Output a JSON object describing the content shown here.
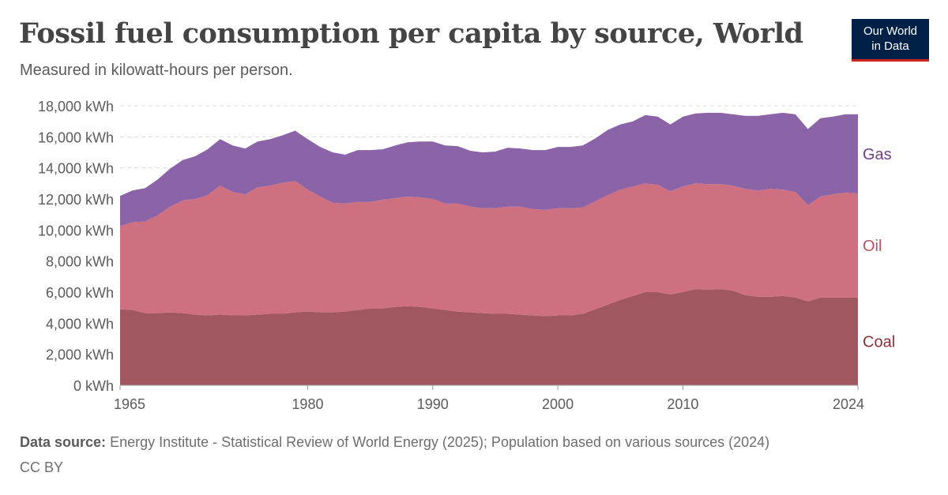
{
  "header": {
    "title": "Fossil fuel consumption per capita by source, World",
    "subtitle": "Measured in kilowatt-hours per person."
  },
  "logo": {
    "line1": "Our World",
    "line2": "in Data"
  },
  "footer": {
    "source_label": "Data source:",
    "source_text": "Energy Institute - Statistical Review of World Energy (2025); Population based on various sources (2024)",
    "license": "CC BY"
  },
  "colors": {
    "coal": "#a0575f",
    "oil": "#cf7080",
    "gas": "#8b64a8",
    "coal_label": "#883039",
    "oil_label": "#c05060",
    "gas_label": "#6e3f8f"
  },
  "chart_data": {
    "type": "area",
    "stacked": true,
    "title": "Fossil fuel consumption per capita by source, World",
    "subtitle": "Measured in kilowatt-hours per person.",
    "unit": "kWh",
    "xlim": [
      1965,
      2024
    ],
    "ylim": [
      0,
      18000
    ],
    "yticks": [
      0,
      2000,
      4000,
      6000,
      8000,
      10000,
      12000,
      14000,
      16000,
      18000
    ],
    "ytick_labels": [
      "0 kWh",
      "2,000 kWh",
      "4,000 kWh",
      "6,000 kWh",
      "8,000 kWh",
      "10,000 kWh",
      "12,000 kWh",
      "14,000 kWh",
      "16,000 kWh",
      "18,000 kWh"
    ],
    "xticks": [
      1965,
      1980,
      1990,
      2000,
      2010,
      2024
    ],
    "xtick_labels": [
      "1965",
      "1980",
      "1990",
      "2000",
      "2010",
      "2024"
    ],
    "grid": "horizontal dashed",
    "legend": "labels at right end of each series",
    "x": [
      1965,
      1966,
      1967,
      1968,
      1969,
      1970,
      1971,
      1972,
      1973,
      1974,
      1975,
      1976,
      1977,
      1978,
      1979,
      1980,
      1981,
      1982,
      1983,
      1984,
      1985,
      1986,
      1987,
      1988,
      1989,
      1990,
      1991,
      1992,
      1993,
      1994,
      1995,
      1996,
      1997,
      1998,
      1999,
      2000,
      2001,
      2002,
      2003,
      2004,
      2005,
      2006,
      2007,
      2008,
      2009,
      2010,
      2011,
      2012,
      2013,
      2014,
      2015,
      2016,
      2017,
      2018,
      2019,
      2020,
      2021,
      2022,
      2023,
      2024
    ],
    "series": [
      {
        "name": "Coal",
        "key": "coal",
        "values": [
          4900,
          4850,
          4650,
          4650,
          4700,
          4650,
          4550,
          4500,
          4550,
          4500,
          4500,
          4550,
          4600,
          4600,
          4700,
          4750,
          4700,
          4700,
          4750,
          4850,
          4950,
          4950,
          5050,
          5100,
          5050,
          4950,
          4850,
          4750,
          4700,
          4650,
          4600,
          4600,
          4550,
          4500,
          4450,
          4500,
          4500,
          4600,
          4900,
          5200,
          5500,
          5750,
          6000,
          6000,
          5850,
          6000,
          6200,
          6150,
          6200,
          6100,
          5800,
          5700,
          5700,
          5750,
          5650,
          5400,
          5650,
          5650,
          5650,
          5650
        ]
      },
      {
        "name": "Oil",
        "key": "oil",
        "values": [
          5350,
          5650,
          5900,
          6300,
          6800,
          7250,
          7450,
          7750,
          8300,
          7950,
          7800,
          8200,
          8250,
          8450,
          8450,
          7850,
          7450,
          7050,
          6950,
          6950,
          6850,
          7000,
          7000,
          7050,
          7050,
          7050,
          6850,
          6950,
          6800,
          6750,
          6800,
          6900,
          6950,
          6850,
          6850,
          6900,
          6900,
          6850,
          6950,
          7050,
          7100,
          7050,
          7000,
          6900,
          6650,
          6800,
          6800,
          6800,
          6750,
          6750,
          6850,
          6850,
          6950,
          6850,
          6800,
          6200,
          6500,
          6650,
          6750,
          6700
        ]
      },
      {
        "name": "Gas",
        "key": "gas",
        "values": [
          1950,
          2050,
          2150,
          2300,
          2450,
          2600,
          2750,
          2950,
          3000,
          3000,
          2950,
          2950,
          3000,
          3050,
          3250,
          3250,
          3200,
          3250,
          3150,
          3350,
          3350,
          3250,
          3400,
          3500,
          3600,
          3700,
          3750,
          3700,
          3600,
          3600,
          3650,
          3800,
          3750,
          3800,
          3850,
          3950,
          3950,
          4000,
          4050,
          4200,
          4200,
          4200,
          4400,
          4400,
          4300,
          4500,
          4500,
          4600,
          4600,
          4600,
          4700,
          4800,
          4800,
          4950,
          5000,
          4900,
          5050,
          5000,
          5050,
          5100
        ]
      }
    ]
  }
}
